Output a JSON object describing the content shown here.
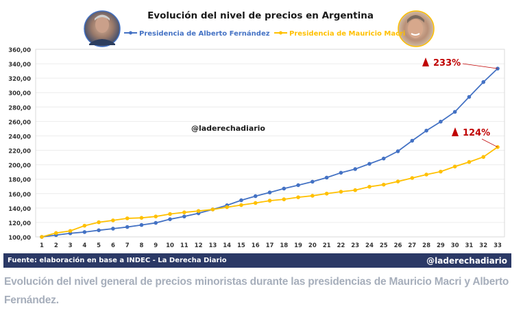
{
  "chart_data": {
    "type": "line",
    "title": "Evolución del nivel de precios en Argentina",
    "xlabel": "",
    "ylabel": "",
    "x": [
      1,
      2,
      3,
      4,
      5,
      6,
      7,
      8,
      9,
      10,
      11,
      12,
      13,
      14,
      15,
      16,
      17,
      18,
      19,
      20,
      21,
      22,
      23,
      24,
      25,
      26,
      27,
      28,
      29,
      30,
      31,
      32,
      33
    ],
    "ylim": [
      100,
      360
    ],
    "yticks": [
      100,
      120,
      140,
      160,
      180,
      200,
      220,
      240,
      260,
      280,
      300,
      320,
      340,
      360
    ],
    "ytick_labels": [
      "100,00",
      "120,00",
      "140,00",
      "160,00",
      "180,00",
      "200,00",
      "220,00",
      "240,00",
      "260,00",
      "280,00",
      "300,00",
      "320,00",
      "340,00",
      "360,00"
    ],
    "grid": true,
    "legend_position": "top-center",
    "series": [
      {
        "name": "Presidencia de Alberto Fernández",
        "color": "#4472c4",
        "values": [
          100,
          102.5,
          105,
          106.7,
          109.2,
          111.4,
          113.7,
          116.5,
          119.4,
          124.5,
          128.3,
          132.7,
          138.1,
          143.8,
          150.8,
          156.5,
          161.6,
          167,
          171.7,
          176.5,
          182.2,
          188.9,
          194,
          201.3,
          208.6,
          218.7,
          233.3,
          247.3,
          259.7,
          273.3,
          294,
          314.6,
          333.3
        ],
        "annotation": "233%"
      },
      {
        "name": "Presidencia de Mauricio Macri",
        "color": "#ffc000",
        "values": [
          100,
          105.4,
          108.3,
          115.5,
          120.3,
          122.9,
          125.7,
          126.4,
          128.3,
          131.7,
          134,
          135.9,
          138,
          141.2,
          144.1,
          147,
          150.2,
          152.1,
          154.9,
          157,
          160,
          162.6,
          164.8,
          169.5,
          172.4,
          176.8,
          181.6,
          186.4,
          190.5,
          197.5,
          203.8,
          210.8,
          224.5
        ],
        "annotation": "124%"
      }
    ],
    "annotation_color": "#c00000",
    "watermark": "@laderechadiario"
  },
  "footer": {
    "source": "Fuente: elaboración en base a INDEC - La Derecha Diario",
    "handle": "@laderechadiario",
    "bg_color": "#2b3966"
  },
  "caption": "Evolución del nivel general de precios minoristas durante las presidencias de Mauricio Macri y Alberto Fernández."
}
